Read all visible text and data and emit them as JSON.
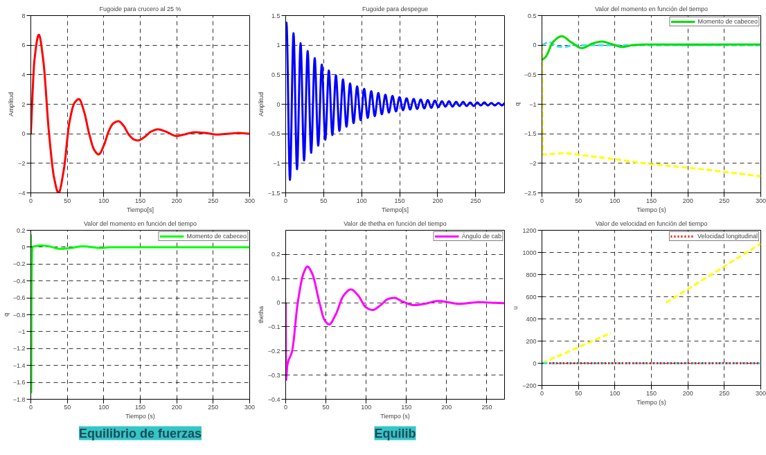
{
  "chart_data": [
    {
      "type": "line",
      "title": "Fugoide para crucero al 25 %",
      "xlabel": "Tiempo[s]",
      "ylabel": "Amplitud",
      "xlim": [
        0,
        300
      ],
      "ylim": [
        -4,
        8
      ],
      "xticks": [
        0,
        50,
        100,
        150,
        200,
        250,
        300
      ],
      "yticks": [
        -4,
        -2,
        0,
        2,
        4,
        6,
        8
      ],
      "grid": true,
      "legend": false,
      "series": [
        {
          "color": "#ff0000",
          "x": [
            0,
            5,
            11,
            17,
            25,
            32,
            38,
            45,
            53,
            60,
            66,
            73,
            80,
            87,
            93,
            100,
            107,
            113,
            120,
            127,
            135,
            142,
            147,
            155,
            165,
            174,
            185,
            200,
            210,
            225,
            240,
            255,
            270,
            285,
            300
          ],
          "values": [
            0,
            5,
            6.7,
            5,
            0,
            -3,
            -4,
            -2.5,
            0.8,
            2.1,
            2.35,
            1.5,
            0,
            -1.1,
            -1.4,
            -0.8,
            0.2,
            0.7,
            0.85,
            0.55,
            -0.1,
            -0.4,
            -0.45,
            -0.25,
            0.15,
            0.3,
            0.15,
            -0.15,
            -0.05,
            0.1,
            0.05,
            -0.05,
            0,
            0.05,
            0
          ]
        }
      ]
    },
    {
      "type": "line",
      "title": "Fugoide para despegue",
      "xlabel": "Tiempo[s]",
      "ylabel": "Amplitud",
      "xlim": [
        0,
        288
      ],
      "ylim": [
        -1.5,
        1.5
      ],
      "xticks": [
        0,
        50,
        100,
        150,
        200,
        250
      ],
      "yticks": [
        -1.5,
        -1,
        -0.5,
        0,
        0.5,
        1,
        1.5
      ],
      "grid": true,
      "legend": false,
      "series": [
        {
          "color": "#0000ff",
          "x": [
            0,
            1,
            5.6,
            10.3,
            14.9,
            19.6,
            24.2,
            28.9,
            33.5,
            38.2,
            42.8,
            47.5,
            52.1,
            56.8,
            61.4,
            66.1,
            70.7,
            75.4,
            80,
            84.7,
            89.3,
            94,
            98.6,
            103.3,
            107.9,
            112.6,
            117.2,
            121.9,
            126.5,
            131.2,
            135.8,
            140.5,
            145.1,
            149.8,
            154.4,
            159.1,
            163.7,
            168.4,
            173,
            177.7,
            182.3,
            187,
            191.6,
            196.3,
            200.9,
            205.6,
            210.2,
            214.9,
            219.5,
            224.2,
            228.8,
            233.5,
            238.1,
            242.8,
            247.4,
            252.1,
            256.7,
            261.4,
            266,
            270.7,
            275.3,
            280,
            284.6,
            288
          ],
          "values": [
            1.1,
            1.38,
            -1.28,
            1.2,
            -1.1,
            1.03,
            -0.95,
            0.9,
            -0.82,
            0.78,
            -0.7,
            0.67,
            -0.6,
            0.57,
            -0.52,
            0.49,
            -0.45,
            0.42,
            -0.38,
            0.35,
            -0.32,
            0.3,
            -0.27,
            0.26,
            -0.23,
            0.22,
            -0.2,
            0.19,
            -0.17,
            0.16,
            -0.14,
            0.14,
            -0.12,
            0.12,
            -0.1,
            0.1,
            -0.09,
            0.09,
            -0.08,
            0.08,
            -0.07,
            0.07,
            -0.06,
            0.06,
            -0.05,
            0.05,
            -0.04,
            0.05,
            -0.04,
            0.04,
            -0.03,
            0.04,
            -0.03,
            0.03,
            -0.03,
            0.03,
            -0.02,
            0.03,
            -0.02,
            0.02,
            -0.02,
            0.02,
            -0.02,
            0.02
          ]
        }
      ]
    },
    {
      "type": "line",
      "title": "Valor del momento en función del tiempo",
      "xlabel": "Tiempo (s)",
      "ylabel": "q",
      "xlim": [
        0,
        300
      ],
      "ylim": [
        -2.5,
        0.5
      ],
      "xticks": [
        0,
        50,
        100,
        150,
        200,
        250,
        300
      ],
      "yticks": [
        -2.5,
        -2,
        -1.5,
        -1,
        -0.5,
        0,
        0.5
      ],
      "grid": true,
      "legend": "top right",
      "series": [
        {
          "color": "#ffff00",
          "line_style": "dashed",
          "x": [
            0,
            1,
            30,
            60,
            100,
            140,
            180,
            220,
            260,
            300
          ],
          "values": [
            0,
            -1.85,
            -1.83,
            -1.87,
            -1.93,
            -2.0,
            -2.05,
            -2.1,
            -2.16,
            -2.22
          ]
        },
        {
          "color": "#40e0f0",
          "line_style": "dashed",
          "x": [
            0,
            10,
            20,
            30,
            45,
            60,
            300
          ],
          "values": [
            0,
            0.05,
            -0.02,
            -0.03,
            0,
            0,
            0
          ]
        },
        {
          "name": "Momento de cabeceo",
          "color": "#00dd00",
          "x": [
            0,
            5,
            15,
            27,
            40,
            55,
            70,
            82,
            95,
            110,
            125,
            140,
            160,
            300
          ],
          "values": [
            -0.25,
            -0.2,
            0.05,
            0.15,
            0.05,
            -0.05,
            0.03,
            0.06,
            0.02,
            -0.03,
            0,
            0.01,
            0.01,
            0.01
          ]
        }
      ]
    },
    {
      "type": "line",
      "title": "Valor del momento en función del tiempo",
      "xlabel": "Tiempo (s)",
      "ylabel": "q",
      "xlim": [
        0,
        300
      ],
      "ylim": [
        -1.8,
        0.2
      ],
      "xticks": [
        0,
        50,
        100,
        150,
        200,
        250,
        300
      ],
      "yticks": [
        -1.8,
        -1.6,
        -1.4,
        -1.2,
        -1,
        -0.8,
        -0.6,
        -0.4,
        -0.2,
        0,
        0.2
      ],
      "grid": true,
      "legend": "top right",
      "annotations": [
        "Equilibrio de fuerzas"
      ],
      "series": [
        {
          "name": "Momento de cabeceo",
          "color": "#00ff00",
          "x": [
            0,
            0.5,
            1,
            2,
            5,
            15,
            25,
            40,
            55,
            70,
            85,
            95,
            110,
            300
          ],
          "values": [
            0.15,
            -1.72,
            -0.5,
            0,
            0.01,
            0.02,
            0.01,
            -0.02,
            -0.01,
            0.01,
            0,
            -0.01,
            0,
            0
          ]
        }
      ]
    },
    {
      "type": "line",
      "title": "Valor de thetha en función del tiempo",
      "xlabel": "Tiempo (s)",
      "ylabel": "thetha",
      "xlim": [
        0,
        272
      ],
      "ylim": [
        -0.4,
        0.3
      ],
      "xticks": [
        0,
        50,
        100,
        150,
        200,
        250
      ],
      "yticks": [
        -0.4,
        -0.3,
        -0.2,
        -0.1,
        0,
        0.1,
        0.2
      ],
      "grid": true,
      "legend": "top right",
      "annotations": [
        "Equilib"
      ],
      "series": [
        {
          "name": "Ángulo de cab",
          "color": "#ff00ff",
          "x": [
            0,
            0.5,
            2,
            8,
            15,
            22,
            27,
            33,
            42,
            48,
            54,
            62,
            72,
            81,
            90,
            100,
            108,
            118,
            127,
            135,
            145,
            160,
            172,
            190,
            205,
            215,
            240,
            255,
            272
          ],
          "values": [
            0,
            -0.32,
            -0.26,
            -0.2,
            0,
            0.12,
            0.15,
            0.12,
            0,
            -0.07,
            -0.09,
            -0.05,
            0.03,
            0.055,
            0.03,
            -0.02,
            -0.03,
            -0.01,
            0.015,
            0.02,
            0.005,
            -0.01,
            -0.005,
            0.007,
            0,
            -0.005,
            0.002,
            0,
            -0.002
          ]
        }
      ]
    },
    {
      "type": "line",
      "title": "Valor de velocidad en función del tiempo",
      "xlabel": "Tiempo (s)",
      "ylabel": "u",
      "xlim": [
        0,
        300
      ],
      "ylim": [
        -200,
        1200
      ],
      "xticks": [
        0,
        50,
        100,
        150,
        200,
        250,
        300
      ],
      "yticks": [
        -200,
        0,
        200,
        400,
        600,
        800,
        1000,
        1200
      ],
      "grid": true,
      "legend": "top right",
      "series": [
        {
          "color": "#ffff00",
          "line_style": "dashed",
          "x": [
            0,
            95,
            130,
            170,
            300
          ],
          "values": [
            0,
            275,
            null,
            545,
            1080
          ]
        },
        {
          "color": "#40e0f0",
          "line_style": "dashed",
          "x": [
            0,
            300
          ],
          "values": [
            0,
            0
          ]
        },
        {
          "name": "Velocidad longitudinal",
          "color": "#ff0000",
          "line_style": "dotted",
          "x": [
            10,
            300
          ],
          "values": [
            0,
            0
          ]
        }
      ]
    }
  ]
}
